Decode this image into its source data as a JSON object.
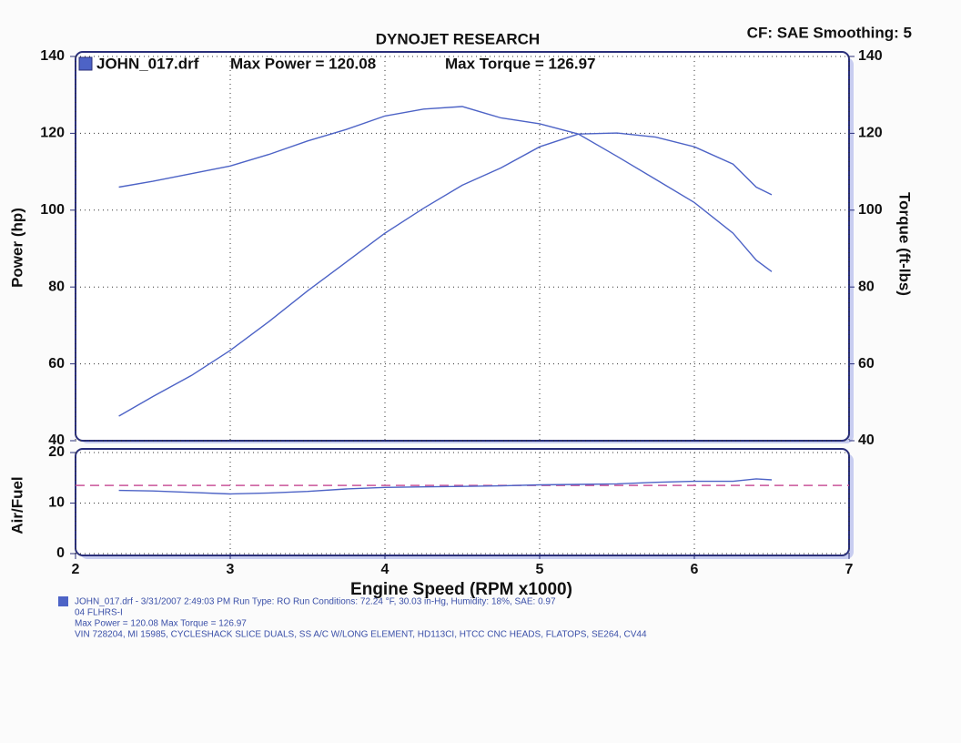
{
  "chart_data": [
    {
      "type": "line",
      "title": "DYNOJET RESEARCH",
      "subtitle": "CF: SAE  Smoothing: 5",
      "legend_items": [
        "JOHN_017.drf",
        "Max Power = 120.08",
        "Max Torque = 126.97"
      ],
      "ylabel": "Power (hp)",
      "y2label": "Torque (ft-lbs)",
      "x": [
        2.28,
        2.5,
        2.75,
        3.0,
        3.25,
        3.5,
        3.75,
        4.0,
        4.25,
        4.5,
        4.75,
        5.0,
        5.25,
        5.5,
        5.75,
        6.0,
        6.25,
        6.4,
        6.5
      ],
      "series": [
        {
          "name": "Power",
          "color": "#4d63c6",
          "values": [
            46.4,
            51.5,
            57,
            63.5,
            71,
            79,
            86.5,
            94,
            100.5,
            106.5,
            111,
            116.5,
            119.8,
            120.08,
            119,
            116.5,
            112,
            106,
            104
          ]
        },
        {
          "name": "Torque",
          "color": "#4d63c6",
          "axis": "y2",
          "values": [
            106,
            107.5,
            109.5,
            111.5,
            114.5,
            118,
            121,
            124.5,
            126.3,
            126.97,
            124,
            122.5,
            119.8,
            114,
            108,
            102,
            94,
            87,
            84
          ]
        }
      ],
      "xlim": [
        2,
        7
      ],
      "xticks": [
        2,
        3,
        4,
        5,
        6,
        7
      ],
      "ylim": [
        40,
        140
      ],
      "yticks": [
        40,
        60,
        80,
        100,
        120,
        140
      ],
      "y2lim": [
        40,
        140
      ],
      "y2ticks": [
        40,
        60,
        80,
        100,
        120,
        140
      ],
      "grid": true
    },
    {
      "type": "line",
      "ylabel": "Air/Fuel",
      "xlabel": "Engine Speed (RPM x1000)",
      "x": [
        2.28,
        2.5,
        2.75,
        3.0,
        3.25,
        3.5,
        3.75,
        4.0,
        4.25,
        4.5,
        4.75,
        5.0,
        5.25,
        5.5,
        5.75,
        6.0,
        6.25,
        6.4,
        6.5
      ],
      "series": [
        {
          "name": "Air/Fuel",
          "color": "#4d63c6",
          "values": [
            12.5,
            12.4,
            12.1,
            11.8,
            12.0,
            12.3,
            12.8,
            13.1,
            13.2,
            13.3,
            13.4,
            13.6,
            13.7,
            13.8,
            14.1,
            14.3,
            14.3,
            14.8,
            14.6
          ]
        }
      ],
      "reference": 13.5,
      "reference_color": "#c9559a",
      "xlim": [
        2,
        7
      ],
      "xticks": [
        2,
        3,
        4,
        5,
        6,
        7
      ],
      "ylim": [
        0,
        20
      ],
      "yticks": [
        0,
        10,
        20
      ],
      "grid": true
    }
  ],
  "footer": {
    "lines": [
      "JOHN_017.drf - 3/31/2007 2:49:03 PM  Run Type: RO  Run Conditions: 72.24 °F, 30.03 in-Hg, Humidity: 18%, SAE: 0.97",
      "04 FLHRS-I",
      "Max Power = 120.08  Max Torque = 126.97",
      "VIN 728204, MI 15985, CYCLESHACK SLICE DUALS, SS A/C W/LONG ELEMENT, HD113CI, HTCC CNC HEADS, FLATOPS, SE264, CV44"
    ]
  }
}
